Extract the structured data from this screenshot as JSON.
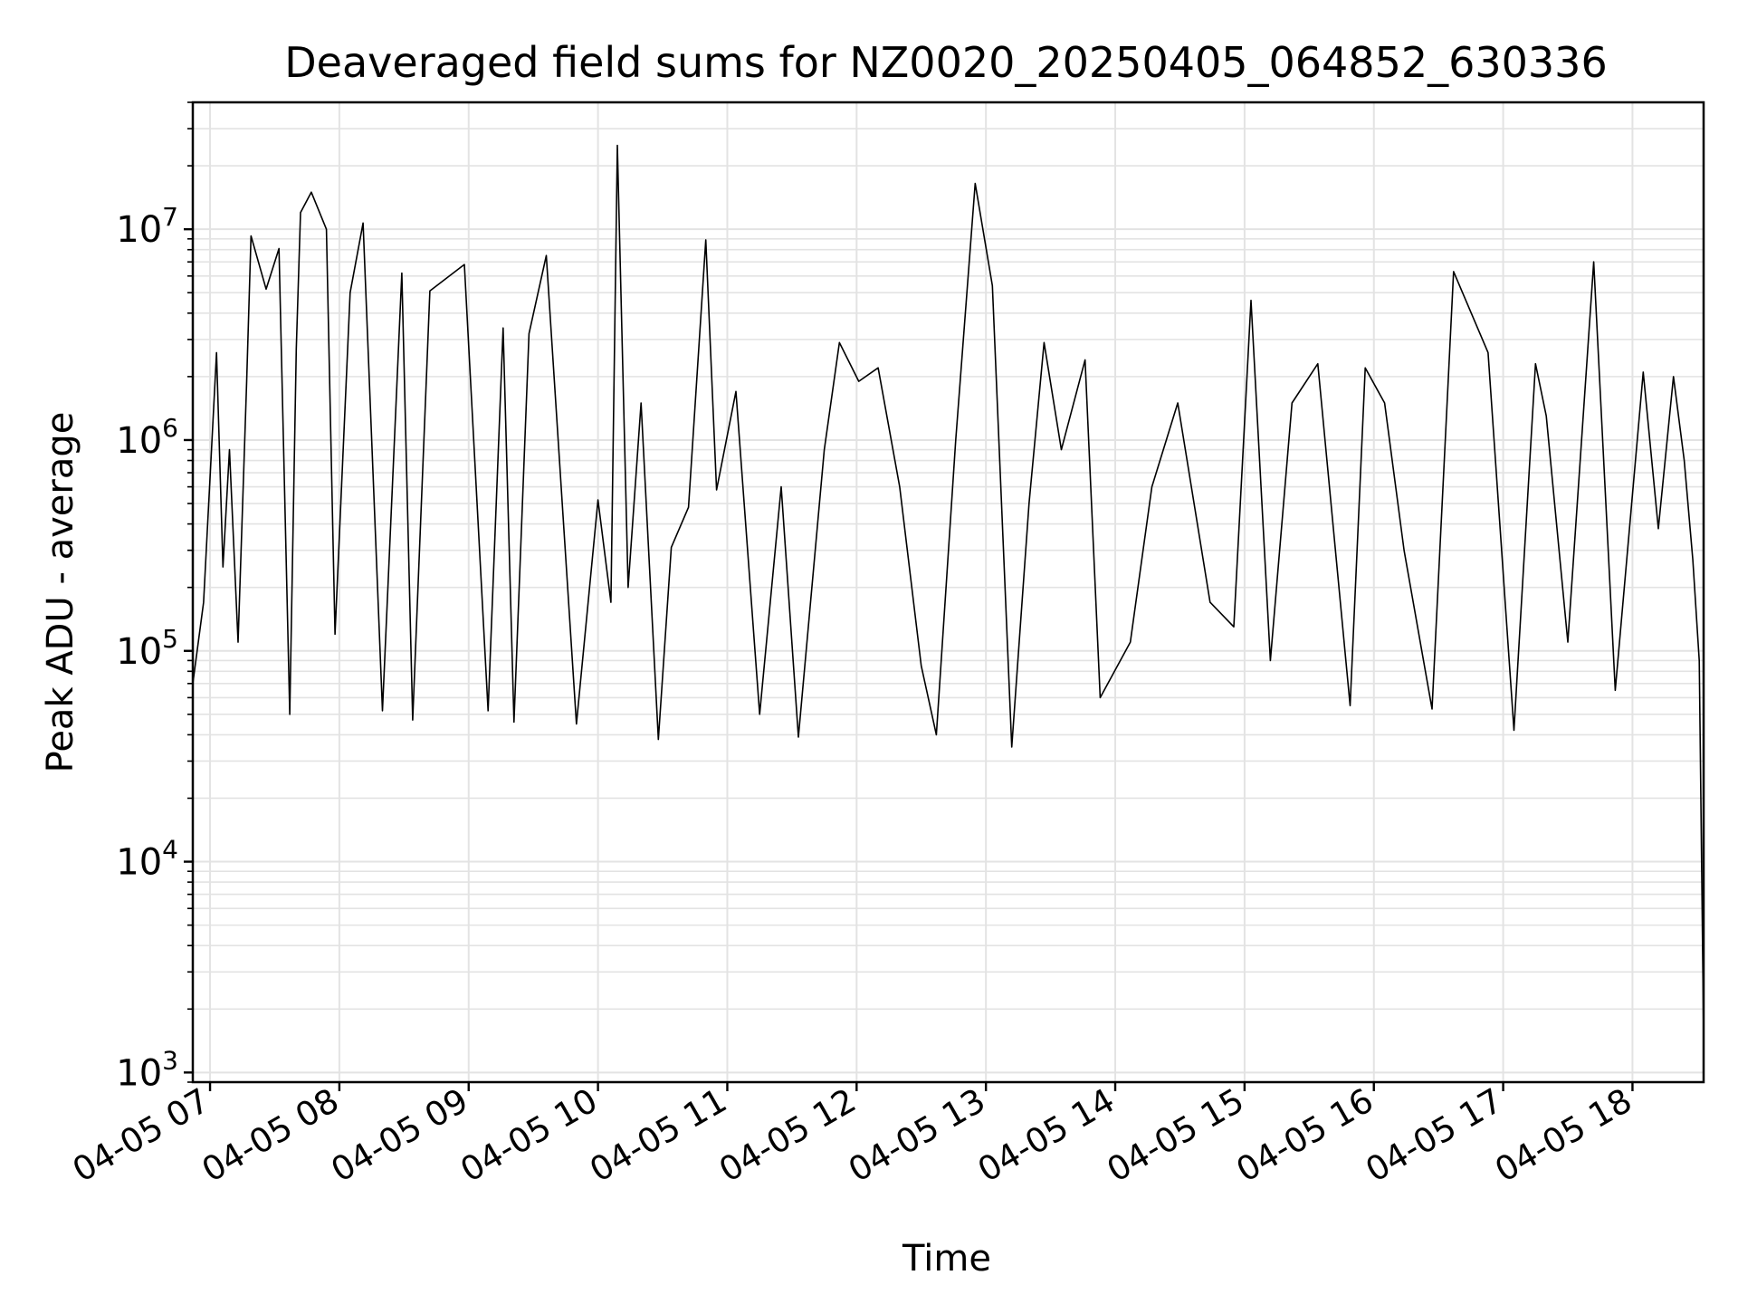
{
  "chart_data": {
    "type": "line",
    "title": "Deaveraged field sums for NZ0020_20250405_064852_630336",
    "xlabel": "Time",
    "ylabel": "Peak ADU - average",
    "x_scale": "time",
    "y_scale": "log",
    "xlim": [
      "2025-04-05 06:52",
      "2025-04-05 18:33"
    ],
    "ylim": [
      900,
      40000000
    ],
    "x_ticks": [
      "04-05 07",
      "04-05 08",
      "04-05 09",
      "04-05 10",
      "04-05 11",
      "04-05 12",
      "04-05 13",
      "04-05 14",
      "04-05 15",
      "04-05 16",
      "04-05 17",
      "04-05 18"
    ],
    "y_ticks": [
      {
        "value": 1000,
        "base": "10",
        "exp": "3"
      },
      {
        "value": 10000,
        "base": "10",
        "exp": "4"
      },
      {
        "value": 100000,
        "base": "10",
        "exp": "5"
      },
      {
        "value": 1000000,
        "base": "10",
        "exp": "6"
      },
      {
        "value": 10000000,
        "base": "10",
        "exp": "7"
      }
    ],
    "grid": true,
    "line_color": "#000000",
    "series": [
      {
        "x": [
          "2025-04-05 06:52",
          "2025-04-05 06:57",
          "2025-04-05 07:03",
          "2025-04-05 07:06",
          "2025-04-05 07:09",
          "2025-04-05 07:13",
          "2025-04-05 07:17",
          "2025-04-05 07:19",
          "2025-04-05 07:26",
          "2025-04-05 07:32",
          "2025-04-05 07:37",
          "2025-04-05 07:40",
          "2025-04-05 07:42",
          "2025-04-05 07:47",
          "2025-04-05 07:54",
          "2025-04-05 07:58",
          "2025-04-05 08:05",
          "2025-04-05 08:11",
          "2025-04-05 08:20",
          "2025-04-05 08:29",
          "2025-04-05 08:34",
          "2025-04-05 08:42",
          "2025-04-05 08:58",
          "2025-04-05 09:09",
          "2025-04-05 09:16",
          "2025-04-05 09:21",
          "2025-04-05 09:28",
          "2025-04-05 09:36",
          "2025-04-05 09:50",
          "2025-04-05 10:00",
          "2025-04-05 10:06",
          "2025-04-05 10:09",
          "2025-04-05 10:14",
          "2025-04-05 10:20",
          "2025-04-05 10:28",
          "2025-04-05 10:34",
          "2025-04-05 10:42",
          "2025-04-05 10:50",
          "2025-04-05 10:55",
          "2025-04-05 11:04",
          "2025-04-05 11:15",
          "2025-04-05 11:25",
          "2025-04-05 11:33",
          "2025-04-05 11:45",
          "2025-04-05 11:52",
          "2025-04-05 12:01",
          "2025-04-05 12:10",
          "2025-04-05 12:20",
          "2025-04-05 12:30",
          "2025-04-05 12:37",
          "2025-04-05 12:46",
          "2025-04-05 12:55",
          "2025-04-05 13:03",
          "2025-04-05 13:12",
          "2025-04-05 13:20",
          "2025-04-05 13:27",
          "2025-04-05 13:35",
          "2025-04-05 13:46",
          "2025-04-05 13:53",
          "2025-04-05 14:07",
          "2025-04-05 14:17",
          "2025-04-05 14:29",
          "2025-04-05 14:44",
          "2025-04-05 14:55",
          "2025-04-05 15:03",
          "2025-04-05 15:12",
          "2025-04-05 15:22",
          "2025-04-05 15:34",
          "2025-04-05 15:49",
          "2025-04-05 15:56",
          "2025-04-05 16:05",
          "2025-04-05 16:14",
          "2025-04-05 16:27",
          "2025-04-05 16:37",
          "2025-04-05 16:53",
          "2025-04-05 17:05",
          "2025-04-05 17:15",
          "2025-04-05 17:20",
          "2025-04-05 17:30",
          "2025-04-05 17:42",
          "2025-04-05 17:52",
          "2025-04-05 18:05",
          "2025-04-05 18:12",
          "2025-04-05 18:19",
          "2025-04-05 18:24",
          "2025-04-05 18:28",
          "2025-04-05 18:31",
          "2025-04-05 18:33"
        ],
        "y": [
          70000,
          170000,
          2600000,
          250000,
          900000,
          110000,
          1900000,
          9300000,
          5200000,
          8100000,
          50000,
          2700000,
          12000000,
          15000000,
          10000000,
          120000,
          5000000,
          10700000,
          52000,
          6200000,
          47000,
          5100000,
          6800000,
          52000,
          3400000,
          46000,
          3200000,
          7500000,
          45000,
          520000,
          170000,
          25000000,
          200000,
          1500000,
          38000,
          310000,
          480000,
          8900000,
          580000,
          1700000,
          50000,
          600000,
          39000,
          900000,
          2900000,
          1900000,
          2200000,
          600000,
          85000,
          40000,
          1000000,
          16500000,
          5400000,
          35000,
          500000,
          2900000,
          900000,
          2400000,
          60000,
          110000,
          600000,
          1500000,
          170000,
          130000,
          4600000,
          90000,
          1500000,
          2300000,
          55000,
          2200000,
          1500000,
          300000,
          53000,
          6300000,
          2600000,
          42000,
          2300000,
          1300000,
          110000,
          7000000,
          65000,
          2100000,
          380000,
          2000000,
          800000,
          270000,
          90000,
          1500
        ]
      }
    ]
  }
}
